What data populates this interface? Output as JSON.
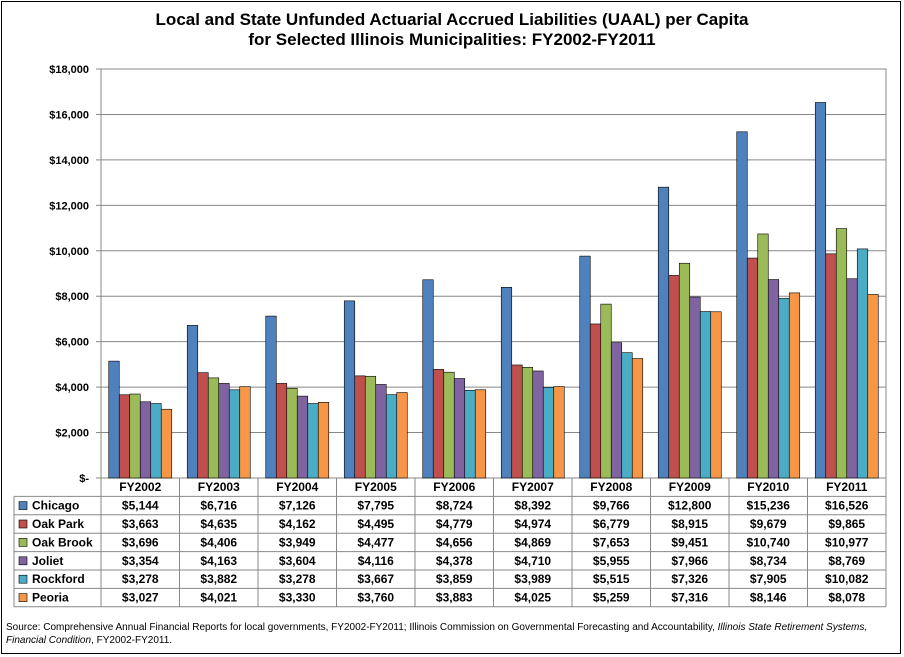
{
  "chart_data": {
    "type": "bar",
    "title_line1": "Local and State Unfunded Actuarial Accrued Liabilities (UAAL) per Capita",
    "title_line2": "for Selected Illinois Municipalities: FY2002-FY2011",
    "categories": [
      "FY2002",
      "FY2003",
      "FY2004",
      "FY2005",
      "FY2006",
      "FY2007",
      "FY2008",
      "FY2009",
      "FY2010",
      "FY2011"
    ],
    "ylim": [
      0,
      18000
    ],
    "ytick_values": [
      0,
      2000,
      4000,
      6000,
      8000,
      10000,
      12000,
      14000,
      16000,
      18000
    ],
    "ytick_labels": [
      "$-",
      "$2,000",
      "$4,000",
      "$6,000",
      "$8,000",
      "$10,000",
      "$12,000",
      "$14,000",
      "$16,000",
      "$18,000"
    ],
    "grid": true,
    "legend": "table-below",
    "series": [
      {
        "name": "Chicago",
        "color": "#4F81BD",
        "values": [
          5144,
          6716,
          7126,
          7795,
          8724,
          8392,
          9766,
          12800,
          15236,
          16526
        ],
        "labels": [
          "$5,144",
          "$6,716",
          "$7,126",
          "$7,795",
          "$8,724",
          "$8,392",
          "$9,766",
          "$12,800",
          "$15,236",
          "$16,526"
        ]
      },
      {
        "name": "Oak Park",
        "color": "#C0504D",
        "values": [
          3663,
          4635,
          4162,
          4495,
          4779,
          4974,
          6779,
          8915,
          9679,
          9865
        ],
        "labels": [
          "$3,663",
          "$4,635",
          "$4,162",
          "$4,495",
          "$4,779",
          "$4,974",
          "$6,779",
          "$8,915",
          "$9,679",
          "$9,865"
        ]
      },
      {
        "name": "Oak Brook",
        "color": "#9BBB59",
        "values": [
          3696,
          4406,
          3949,
          4477,
          4656,
          4869,
          7653,
          9451,
          10740,
          10977
        ],
        "labels": [
          "$3,696",
          "$4,406",
          "$3,949",
          "$4,477",
          "$4,656",
          "$4,869",
          "$7,653",
          "$9,451",
          "$10,740",
          "$10,977"
        ]
      },
      {
        "name": "Joliet",
        "color": "#8064A2",
        "values": [
          3354,
          4163,
          3604,
          4116,
          4378,
          4710,
          5955,
          7966,
          8734,
          8769
        ],
        "labels": [
          "$3,354",
          "$4,163",
          "$3,604",
          "$4,116",
          "$4,378",
          "$4,710",
          "$5,955",
          "$7,966",
          "$8,734",
          "$8,769"
        ]
      },
      {
        "name": "Rockford",
        "color": "#4BACC6",
        "values": [
          3278,
          3882,
          3278,
          3667,
          3859,
          3989,
          5515,
          7326,
          7905,
          10082
        ],
        "labels": [
          "$3,278",
          "$3,882",
          "$3,278",
          "$3,667",
          "$3,859",
          "$3,989",
          "$5,515",
          "$7,326",
          "$7,905",
          "$10,082"
        ]
      },
      {
        "name": "Peoria",
        "color": "#F79646",
        "values": [
          3027,
          4021,
          3330,
          3760,
          3883,
          4025,
          5259,
          7316,
          8146,
          8078
        ],
        "labels": [
          "$3,027",
          "$4,021",
          "$3,330",
          "$3,760",
          "$3,883",
          "$4,025",
          "$5,259",
          "$7,316",
          "$8,146",
          "$8,078"
        ]
      }
    ]
  },
  "source": {
    "part1": "Source: Comprehensive Annual Financial Reports for local governments, FY2002-FY2011; Illinois Commission on Governmental Forecasting and Accountability, ",
    "italic1": "Illinois State Retirement Systems, Financial Condition",
    "part2": ", FY2002-FY2011."
  }
}
